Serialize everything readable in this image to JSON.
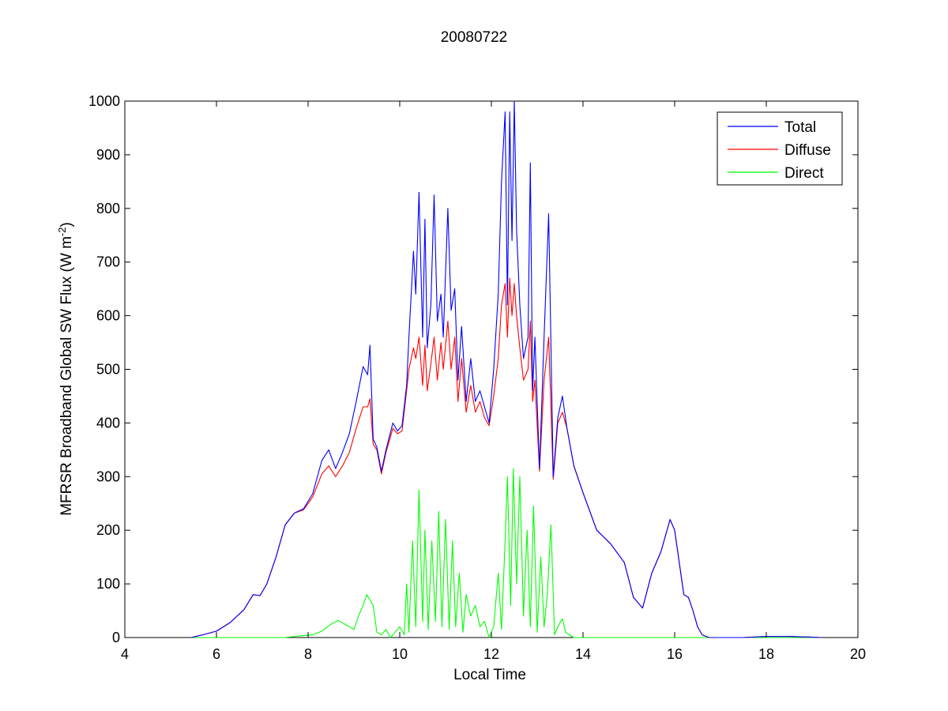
{
  "chart_data": {
    "type": "line",
    "title": "20080722",
    "xlabel": "Local Time",
    "ylabel_main": "MFRSR Broadband Global SW Flux (W m",
    "ylabel_sup": "-2",
    "ylabel_close": ")",
    "xlim": [
      4,
      20
    ],
    "ylim": [
      0,
      1000
    ],
    "xticks": [
      4,
      6,
      8,
      10,
      12,
      14,
      16,
      18,
      20
    ],
    "yticks": [
      0,
      100,
      200,
      300,
      400,
      500,
      600,
      700,
      800,
      900,
      1000
    ],
    "grid": false,
    "legend_position": "top-right",
    "series": [
      {
        "name": "Total",
        "color": "#0000ff",
        "x": [
          5.45,
          5.7,
          6.0,
          6.3,
          6.6,
          6.8,
          6.95,
          7.1,
          7.3,
          7.5,
          7.7,
          7.9,
          8.1,
          8.3,
          8.45,
          8.6,
          8.75,
          8.9,
          9.05,
          9.2,
          9.3,
          9.35,
          9.42,
          9.5,
          9.6,
          9.7,
          9.85,
          9.95,
          10.05,
          10.15,
          10.2,
          10.3,
          10.35,
          10.42,
          10.5,
          10.55,
          10.6,
          10.68,
          10.75,
          10.82,
          10.9,
          10.95,
          11.05,
          11.12,
          11.2,
          11.27,
          11.35,
          11.45,
          11.55,
          11.65,
          11.75,
          11.85,
          11.95,
          12.05,
          12.15,
          12.22,
          12.3,
          12.35,
          12.4,
          12.45,
          12.5,
          12.55,
          12.62,
          12.7,
          12.8,
          12.85,
          12.9,
          12.95,
          13.05,
          13.15,
          13.25,
          13.35,
          13.45,
          13.55,
          13.65,
          13.8,
          14.0,
          14.3,
          14.6,
          14.9,
          15.1,
          15.3,
          15.5,
          15.7,
          15.9,
          16.0,
          16.1,
          16.2,
          16.3,
          16.4,
          16.5,
          16.6,
          16.75,
          17.0,
          17.5,
          18.0,
          18.5,
          18.9,
          19.2
        ],
        "values": [
          0,
          5,
          12,
          28,
          52,
          80,
          78,
          100,
          150,
          210,
          232,
          240,
          268,
          330,
          350,
          315,
          345,
          380,
          440,
          505,
          490,
          545,
          370,
          355,
          310,
          350,
          400,
          385,
          395,
          470,
          560,
          720,
          640,
          830,
          560,
          780,
          540,
          620,
          825,
          590,
          640,
          560,
          800,
          610,
          650,
          480,
          580,
          440,
          520,
          440,
          460,
          430,
          400,
          500,
          640,
          850,
          980,
          620,
          980,
          740,
          1000,
          760,
          620,
          520,
          560,
          885,
          460,
          560,
          315,
          560,
          790,
          300,
          410,
          450,
          390,
          320,
          270,
          200,
          175,
          140,
          75,
          55,
          120,
          160,
          220,
          200,
          140,
          80,
          75,
          50,
          20,
          5,
          0,
          0,
          0,
          2,
          2,
          1,
          0
        ]
      },
      {
        "name": "Diffuse",
        "color": "#ff0000",
        "x": [
          5.45,
          5.7,
          6.0,
          6.3,
          6.6,
          6.8,
          6.95,
          7.1,
          7.3,
          7.5,
          7.7,
          7.9,
          8.1,
          8.3,
          8.45,
          8.6,
          8.75,
          8.9,
          9.05,
          9.2,
          9.3,
          9.35,
          9.42,
          9.5,
          9.6,
          9.7,
          9.85,
          9.95,
          10.05,
          10.15,
          10.2,
          10.3,
          10.35,
          10.42,
          10.5,
          10.55,
          10.6,
          10.68,
          10.75,
          10.82,
          10.9,
          10.95,
          11.05,
          11.12,
          11.2,
          11.27,
          11.35,
          11.45,
          11.55,
          11.65,
          11.75,
          11.85,
          11.95,
          12.05,
          12.15,
          12.22,
          12.3,
          12.35,
          12.4,
          12.45,
          12.5,
          12.55,
          12.62,
          12.7,
          12.8,
          12.85,
          12.9,
          12.95,
          13.05,
          13.15,
          13.25,
          13.35,
          13.45,
          13.55,
          13.65,
          13.8,
          14.0,
          14.3,
          14.6,
          14.9,
          15.1,
          15.3,
          15.5,
          15.7,
          15.9,
          16.0,
          16.1,
          16.2,
          16.3,
          16.4,
          16.5,
          16.6,
          16.75,
          17.0,
          17.5,
          18.0,
          18.5,
          18.9,
          19.2
        ],
        "values": [
          0,
          5,
          12,
          28,
          52,
          80,
          78,
          100,
          150,
          210,
          232,
          238,
          262,
          305,
          320,
          300,
          320,
          345,
          390,
          430,
          430,
          445,
          360,
          350,
          305,
          345,
          390,
          380,
          385,
          460,
          500,
          540,
          520,
          560,
          470,
          545,
          460,
          510,
          560,
          480,
          550,
          500,
          590,
          500,
          560,
          440,
          520,
          420,
          470,
          420,
          440,
          410,
          395,
          450,
          520,
          620,
          660,
          560,
          670,
          600,
          660,
          600,
          540,
          480,
          500,
          590,
          440,
          480,
          310,
          480,
          560,
          295,
          400,
          420,
          390,
          320,
          270,
          200,
          175,
          140,
          75,
          55,
          120,
          160,
          220,
          200,
          140,
          80,
          75,
          50,
          20,
          5,
          0,
          0,
          0,
          2,
          2,
          1,
          0
        ]
      },
      {
        "name": "Direct",
        "color": "#00ff00",
        "x": [
          5.45,
          7.5,
          7.8,
          8.1,
          8.3,
          8.5,
          8.65,
          8.8,
          9.0,
          9.1,
          9.2,
          9.28,
          9.35,
          9.42,
          9.5,
          9.6,
          9.7,
          9.8,
          9.9,
          10.0,
          10.1,
          10.15,
          10.2,
          10.28,
          10.35,
          10.42,
          10.5,
          10.55,
          10.62,
          10.7,
          10.78,
          10.85,
          10.92,
          11.0,
          11.08,
          11.15,
          11.22,
          11.3,
          11.38,
          11.45,
          11.55,
          11.65,
          11.75,
          11.85,
          11.95,
          12.05,
          12.15,
          12.22,
          12.3,
          12.35,
          12.42,
          12.48,
          12.55,
          12.62,
          12.7,
          12.78,
          12.85,
          12.92,
          13.0,
          13.08,
          13.15,
          13.22,
          13.3,
          13.38,
          13.45,
          13.55,
          13.62,
          13.7,
          13.8,
          14.0,
          15.0,
          16.0,
          17.0,
          18.0,
          19.0,
          19.2
        ],
        "values": [
          0,
          0,
          3,
          5,
          12,
          25,
          32,
          25,
          15,
          40,
          60,
          80,
          70,
          60,
          10,
          5,
          15,
          0,
          10,
          20,
          5,
          100,
          10,
          180,
          20,
          275,
          30,
          200,
          15,
          180,
          30,
          235,
          20,
          220,
          15,
          180,
          20,
          120,
          10,
          80,
          40,
          60,
          20,
          30,
          0,
          20,
          120,
          15,
          180,
          300,
          60,
          315,
          100,
          300,
          40,
          200,
          20,
          245,
          10,
          150,
          20,
          80,
          210,
          5,
          20,
          35,
          10,
          5,
          0,
          0,
          0,
          0,
          0,
          0,
          0,
          0
        ]
      }
    ]
  }
}
